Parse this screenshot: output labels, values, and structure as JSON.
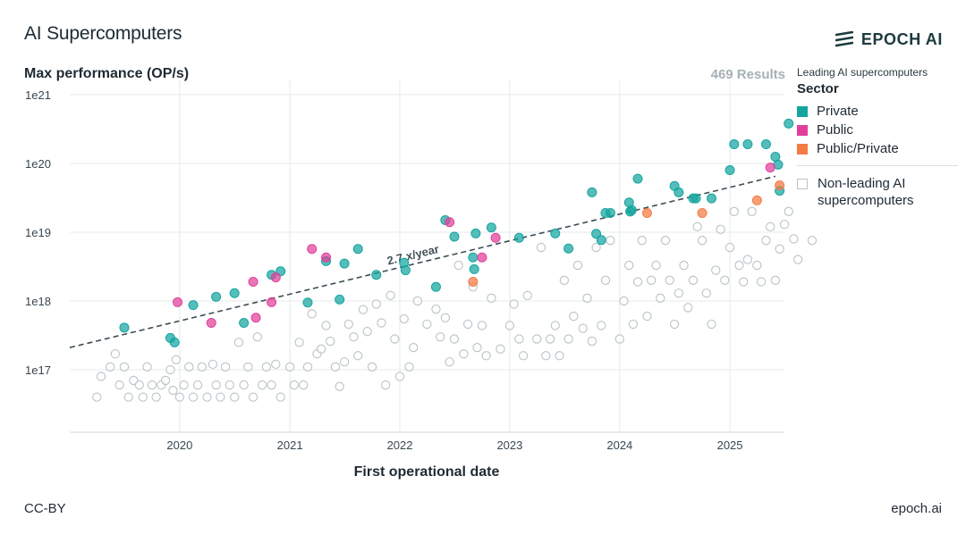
{
  "header": {
    "title": "AI Supercomputers",
    "logo_text": "EPOCH AI",
    "results_text": "469 Results"
  },
  "footer": {
    "license": "CC-BY",
    "site": "epoch.ai"
  },
  "legend": {
    "title": "Leading AI supercomputers",
    "sector_heading": "Sector",
    "items": [
      {
        "label": "Private",
        "color": "#14a5a0"
      },
      {
        "label": "Public",
        "color": "#e0409a"
      },
      {
        "label": "Public/Private",
        "color": "#f47c44"
      }
    ],
    "non_leading_label": "Non-leading AI supercomputers"
  },
  "chart_data": {
    "type": "scatter",
    "xlabel": "First operational date",
    "ylabel": "Max performance (OP/s)",
    "yscale": "log",
    "ylim": [
      2e+16,
      2e+21
    ],
    "xlim": [
      "2019-01-01",
      "2025-07-01"
    ],
    "x_ticks": [
      "2020",
      "2021",
      "2022",
      "2023",
      "2024",
      "2025"
    ],
    "y_ticks": [
      "1e17",
      "1e18",
      "1e19",
      "1e20",
      "1e21"
    ],
    "grid": true,
    "legend_position": "right",
    "trend": {
      "label": "2.7 x/year",
      "start": [
        "2019-01-01",
        2.1e+17
      ],
      "end": [
        "2025-06-01",
        6.5e+19
      ]
    },
    "series": [
      {
        "name": "Private",
        "color": "#14a5a0",
        "points": [
          [
            "2019-07-01",
            4.1e+17
          ],
          [
            "2019-12-01",
            2.9e+17
          ],
          [
            "2019-12-15",
            2.5e+17
          ],
          [
            "2020-05-01",
            1.15e+18
          ],
          [
            "2020-02-15",
            8.7e+17
          ],
          [
            "2020-07-01",
            1.3e+18
          ],
          [
            "2020-08-01",
            4.8e+17
          ],
          [
            "2020-11-01",
            2.4e+18
          ],
          [
            "2020-12-01",
            2.7e+18
          ],
          [
            "2021-03-01",
            9.5e+17
          ],
          [
            "2021-05-01",
            3.8e+18
          ],
          [
            "2021-06-15",
            1.05e+18
          ],
          [
            "2021-07-01",
            3.5e+18
          ],
          [
            "2021-08-15",
            5.7e+18
          ],
          [
            "2021-10-15",
            2.4e+18
          ],
          [
            "2022-01-15",
            3.6e+18
          ],
          [
            "2022-01-20",
            2.8e+18
          ],
          [
            "2022-05-01",
            1.6e+18
          ],
          [
            "2022-06-01",
            1.5e+19
          ],
          [
            "2022-07-01",
            8.6e+18
          ],
          [
            "2022-09-01",
            4.3e+18
          ],
          [
            "2022-09-05",
            2.9e+18
          ],
          [
            "2022-09-10",
            9.6e+18
          ],
          [
            "2022-11-01",
            1.17e+19
          ],
          [
            "2023-02-01",
            8.3e+18
          ],
          [
            "2023-06-01",
            9.6e+18
          ],
          [
            "2023-07-15",
            5.8e+18
          ],
          [
            "2023-10-01",
            3.8e+19
          ],
          [
            "2023-10-15",
            9.5e+18
          ],
          [
            "2023-11-01",
            7.7e+18
          ],
          [
            "2023-11-15",
            1.9e+19
          ],
          [
            "2023-12-01",
            1.9e+19
          ],
          [
            "2024-02-01",
            2.7e+19
          ],
          [
            "2024-02-05",
            2e+19
          ],
          [
            "2024-02-10",
            2.1e+19
          ],
          [
            "2024-03-01",
            6e+19
          ],
          [
            "2024-07-01",
            4.7e+19
          ],
          [
            "2024-07-15",
            3.8e+19
          ],
          [
            "2024-09-01",
            3.1e+19
          ],
          [
            "2024-09-10",
            3.1e+19
          ],
          [
            "2024-11-01",
            3.1e+19
          ],
          [
            "2025-01-01",
            8e+19
          ],
          [
            "2025-01-15",
            1.9e+20
          ],
          [
            "2025-03-01",
            1.9e+20
          ],
          [
            "2025-05-01",
            1.9e+20
          ],
          [
            "2025-06-01",
            1.25e+20
          ],
          [
            "2025-06-10",
            9.6e+19
          ],
          [
            "2025-06-15",
            4e+19
          ],
          [
            "2025-07-15",
            3.8e+20
          ]
        ]
      },
      {
        "name": "Public",
        "color": "#e0409a",
        "points": [
          [
            "2019-12-25",
            9.6e+17
          ],
          [
            "2020-04-15",
            4.8e+17
          ],
          [
            "2020-09-01",
            1.9e+18
          ],
          [
            "2020-09-10",
            5.7e+17
          ],
          [
            "2020-11-01",
            9.6e+17
          ],
          [
            "2020-11-15",
            2.2e+18
          ],
          [
            "2021-03-15",
            5.7e+18
          ],
          [
            "2021-05-01",
            4.3e+18
          ],
          [
            "2022-06-15",
            1.4e+19
          ],
          [
            "2022-10-01",
            4.3e+18
          ],
          [
            "2022-11-15",
            8.3e+18
          ],
          [
            "2025-05-15",
            8.7e+19
          ]
        ]
      },
      {
        "name": "Public/Private",
        "color": "#f47c44",
        "points": [
          [
            "2022-09-01",
            1.9e+18
          ],
          [
            "2024-04-01",
            1.9e+19
          ],
          [
            "2024-10-01",
            1.9e+19
          ],
          [
            "2025-04-01",
            2.9e+19
          ],
          [
            "2025-06-15",
            4.8e+19
          ]
        ]
      },
      {
        "name": "Non-leading AI supercomputers",
        "color": "#b9c3c7",
        "points": [
          [
            "2019-04-01",
            4e+16
          ],
          [
            "2019-04-15",
            8e+16
          ],
          [
            "2019-05-15",
            1.1e+17
          ],
          [
            "2019-06-01",
            1.7e+17
          ],
          [
            "2019-06-15",
            6e+16
          ],
          [
            "2019-07-01",
            1.1e+17
          ],
          [
            "2019-07-15",
            4e+16
          ],
          [
            "2019-08-01",
            7e+16
          ],
          [
            "2019-08-20",
            6e+16
          ],
          [
            "2019-09-01",
            4e+16
          ],
          [
            "2019-09-15",
            1.1e+17
          ],
          [
            "2019-10-01",
            6e+16
          ],
          [
            "2019-10-15",
            4e+16
          ],
          [
            "2019-11-01",
            6e+16
          ],
          [
            "2019-11-15",
            7e+16
          ],
          [
            "2019-12-01",
            1e+17
          ],
          [
            "2019-12-10",
            5e+16
          ],
          [
            "2019-12-20",
            1.4e+17
          ],
          [
            "2020-01-01",
            4e+16
          ],
          [
            "2020-01-15",
            6e+16
          ],
          [
            "2020-02-01",
            1.1e+17
          ],
          [
            "2020-02-15",
            4e+16
          ],
          [
            "2020-03-01",
            6e+16
          ],
          [
            "2020-03-15",
            1.1e+17
          ],
          [
            "2020-04-01",
            4e+16
          ],
          [
            "2020-04-20",
            1.2e+17
          ],
          [
            "2020-05-01",
            6e+16
          ],
          [
            "2020-05-15",
            4e+16
          ],
          [
            "2020-06-01",
            1.1e+17
          ],
          [
            "2020-06-15",
            6e+16
          ],
          [
            "2020-07-01",
            4e+16
          ],
          [
            "2020-07-15",
            2.5e+17
          ],
          [
            "2020-08-01",
            6e+16
          ],
          [
            "2020-08-15",
            1.1e+17
          ],
          [
            "2020-09-01",
            4e+16
          ],
          [
            "2020-09-15",
            3e+17
          ],
          [
            "2020-10-01",
            6e+16
          ],
          [
            "2020-10-15",
            1.1e+17
          ],
          [
            "2020-11-01",
            6e+16
          ],
          [
            "2020-11-15",
            1.2e+17
          ],
          [
            "2020-12-01",
            4e+16
          ],
          [
            "2021-01-01",
            1.1e+17
          ],
          [
            "2021-01-15",
            6e+16
          ],
          [
            "2021-02-01",
            2.5e+17
          ],
          [
            "2021-02-15",
            6e+16
          ],
          [
            "2021-03-01",
            1.1e+17
          ],
          [
            "2021-03-15",
            6.5e+17
          ],
          [
            "2021-04-01",
            1.7e+17
          ],
          [
            "2021-04-15",
            2e+17
          ],
          [
            "2021-05-01",
            4.4e+17
          ],
          [
            "2021-05-15",
            2.6e+17
          ],
          [
            "2021-06-01",
            1.1e+17
          ],
          [
            "2021-06-15",
            5.7e+16
          ],
          [
            "2021-07-01",
            1.3e+17
          ],
          [
            "2021-07-15",
            4.6e+17
          ],
          [
            "2021-08-01",
            3e+17
          ],
          [
            "2021-08-15",
            1.6e+17
          ],
          [
            "2021-09-01",
            7.5e+17
          ],
          [
            "2021-09-15",
            3.6e+17
          ],
          [
            "2021-10-01",
            1.1e+17
          ],
          [
            "2021-10-15",
            9e+17
          ],
          [
            "2021-11-01",
            4.8e+17
          ],
          [
            "2021-11-15",
            6e+16
          ],
          [
            "2021-12-01",
            1.2e+18
          ],
          [
            "2021-12-15",
            2.8e+17
          ],
          [
            "2022-01-01",
            8e+16
          ],
          [
            "2022-01-15",
            5.5e+17
          ],
          [
            "2022-02-01",
            1.1e+17
          ],
          [
            "2022-02-15",
            2.1e+17
          ],
          [
            "2022-03-01",
            1e+18
          ],
          [
            "2022-04-01",
            4.6e+17
          ],
          [
            "2022-05-01",
            7.6e+17
          ],
          [
            "2022-05-15",
            3e+17
          ],
          [
            "2022-06-01",
            5.7e+17
          ],
          [
            "2022-06-15",
            1.3e+17
          ],
          [
            "2022-07-01",
            2.8e+17
          ],
          [
            "2022-07-15",
            3.3e+18
          ],
          [
            "2022-08-01",
            1.7e+17
          ],
          [
            "2022-08-15",
            4.6e+17
          ],
          [
            "2022-09-01",
            1.6e+18
          ],
          [
            "2022-09-15",
            2.1e+17
          ],
          [
            "2022-10-01",
            4.4e+17
          ],
          [
            "2022-10-15",
            1.6e+17
          ],
          [
            "2022-11-01",
            1.1e+18
          ],
          [
            "2022-12-01",
            2e+17
          ],
          [
            "2023-01-01",
            4.4e+17
          ],
          [
            "2023-01-15",
            9e+17
          ],
          [
            "2023-02-01",
            2.8e+17
          ],
          [
            "2023-02-15",
            1.6e+17
          ],
          [
            "2023-03-01",
            1.2e+18
          ],
          [
            "2023-04-01",
            2.8e+17
          ],
          [
            "2023-04-15",
            6e+18
          ],
          [
            "2023-05-01",
            1.6e+17
          ],
          [
            "2023-05-15",
            2.8e+17
          ],
          [
            "2023-06-01",
            4.4e+17
          ],
          [
            "2023-06-15",
            1.6e+17
          ],
          [
            "2023-07-01",
            2e+18
          ],
          [
            "2023-07-15",
            2.8e+17
          ],
          [
            "2023-08-01",
            6e+17
          ],
          [
            "2023-08-15",
            3.3e+18
          ],
          [
            "2023-09-01",
            4e+17
          ],
          [
            "2023-09-15",
            1.1e+18
          ],
          [
            "2023-10-01",
            2.6e+17
          ],
          [
            "2023-10-15",
            6e+18
          ],
          [
            "2023-11-01",
            4.4e+17
          ],
          [
            "2023-11-15",
            2e+18
          ],
          [
            "2023-12-01",
            7.6e+18
          ],
          [
            "2024-01-01",
            2.8e+17
          ],
          [
            "2024-01-15",
            1e+18
          ],
          [
            "2024-02-01",
            3.3e+18
          ],
          [
            "2024-02-15",
            4.6e+17
          ],
          [
            "2024-03-01",
            1.9e+18
          ],
          [
            "2024-03-15",
            7.6e+18
          ],
          [
            "2024-04-01",
            6e+17
          ],
          [
            "2024-04-15",
            2e+18
          ],
          [
            "2024-05-01",
            3.3e+18
          ],
          [
            "2024-05-15",
            1.1e+18
          ],
          [
            "2024-06-01",
            7.6e+18
          ],
          [
            "2024-06-15",
            2e+18
          ],
          [
            "2024-07-01",
            4.6e+17
          ],
          [
            "2024-07-15",
            1.3e+18
          ],
          [
            "2024-08-01",
            3.3e+18
          ],
          [
            "2024-08-15",
            8e+17
          ],
          [
            "2024-09-01",
            2e+18
          ],
          [
            "2024-09-15",
            1.2e+19
          ],
          [
            "2024-10-01",
            7.6e+18
          ],
          [
            "2024-10-15",
            1.3e+18
          ],
          [
            "2024-11-01",
            4.6e+17
          ],
          [
            "2024-11-15",
            2.8e+18
          ],
          [
            "2024-12-01",
            1.1e+19
          ],
          [
            "2024-12-15",
            2e+18
          ],
          [
            "2025-01-01",
            6e+18
          ],
          [
            "2025-01-15",
            2e+19
          ],
          [
            "2025-02-01",
            3.3e+18
          ],
          [
            "2025-02-15",
            1.9e+18
          ],
          [
            "2025-03-01",
            4e+18
          ],
          [
            "2025-03-15",
            2e+19
          ],
          [
            "2025-04-01",
            3.3e+18
          ],
          [
            "2025-04-15",
            1.9e+18
          ],
          [
            "2025-05-01",
            7.6e+18
          ],
          [
            "2025-05-15",
            1.2e+19
          ],
          [
            "2025-06-01",
            2e+18
          ],
          [
            "2025-06-15",
            5.7e+18
          ],
          [
            "2025-07-01",
            1.3e+19
          ],
          [
            "2025-07-15",
            2e+19
          ],
          [
            "2025-08-01",
            8e+18
          ],
          [
            "2025-08-15",
            4e+18
          ],
          [
            "2025-10-01",
            7.6e+18
          ]
        ]
      }
    ]
  }
}
